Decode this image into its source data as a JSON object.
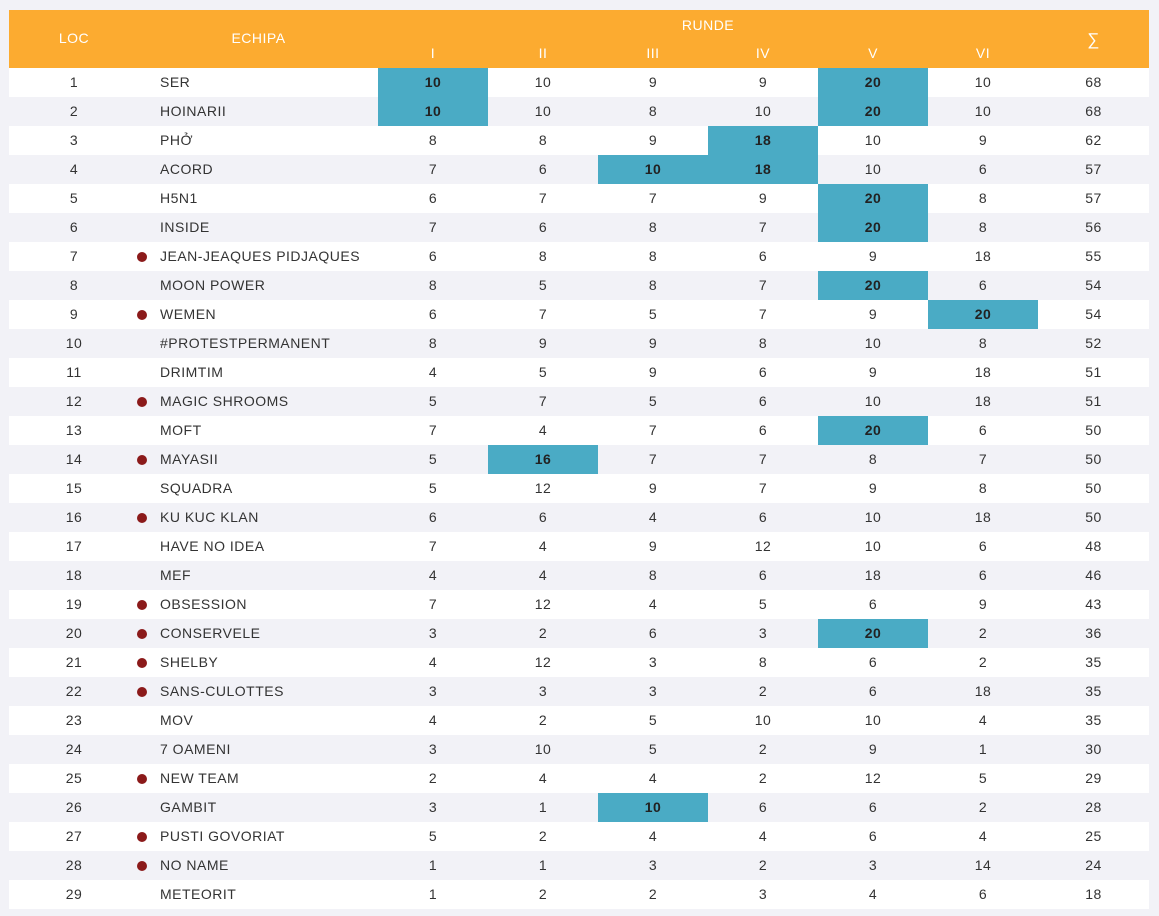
{
  "header": {
    "loc": "LOC",
    "team": "ECHIPA",
    "runde": "RUNDE",
    "rounds": [
      "I",
      "II",
      "III",
      "IV",
      "V",
      "VI"
    ],
    "sum": "∑"
  },
  "colors": {
    "header_bg": "#fcab30",
    "highlight": "#4aabc5",
    "dot": "#8b1a1a"
  },
  "rows": [
    {
      "loc": "1",
      "team": "SER",
      "dot": false,
      "scores": [
        "10",
        "10",
        "9",
        "9",
        "20",
        "10"
      ],
      "hl": [
        0,
        4
      ],
      "total": "68"
    },
    {
      "loc": "2",
      "team": "HOINARII",
      "dot": false,
      "scores": [
        "10",
        "10",
        "8",
        "10",
        "20",
        "10"
      ],
      "hl": [
        0,
        4
      ],
      "total": "68"
    },
    {
      "loc": "3",
      "team": "PHỞ",
      "dot": false,
      "scores": [
        "8",
        "8",
        "9",
        "18",
        "10",
        "9"
      ],
      "hl": [
        3
      ],
      "total": "62"
    },
    {
      "loc": "4",
      "team": "ACORD",
      "dot": false,
      "scores": [
        "7",
        "6",
        "10",
        "18",
        "10",
        "6"
      ],
      "hl": [
        2,
        3
      ],
      "total": "57"
    },
    {
      "loc": "5",
      "team": "H5N1",
      "dot": false,
      "scores": [
        "6",
        "7",
        "7",
        "9",
        "20",
        "8"
      ],
      "hl": [
        4
      ],
      "total": "57"
    },
    {
      "loc": "6",
      "team": "INSIDE",
      "dot": false,
      "scores": [
        "7",
        "6",
        "8",
        "7",
        "20",
        "8"
      ],
      "hl": [
        4
      ],
      "total": "56"
    },
    {
      "loc": "7",
      "team": "JEAN-JEAQUES PIDJAQUES",
      "dot": true,
      "scores": [
        "6",
        "8",
        "8",
        "6",
        "9",
        "18"
      ],
      "hl": [],
      "total": "55"
    },
    {
      "loc": "8",
      "team": "MOON POWER",
      "dot": false,
      "scores": [
        "8",
        "5",
        "8",
        "7",
        "20",
        "6"
      ],
      "hl": [
        4
      ],
      "total": "54"
    },
    {
      "loc": "9",
      "team": "WEMEN",
      "dot": true,
      "scores": [
        "6",
        "7",
        "5",
        "7",
        "9",
        "20"
      ],
      "hl": [
        5
      ],
      "total": "54"
    },
    {
      "loc": "10",
      "team": "#PROTESTPERMANENT",
      "dot": false,
      "scores": [
        "8",
        "9",
        "9",
        "8",
        "10",
        "8"
      ],
      "hl": [],
      "total": "52"
    },
    {
      "loc": "11",
      "team": "DRIMTIM",
      "dot": false,
      "scores": [
        "4",
        "5",
        "9",
        "6",
        "9",
        "18"
      ],
      "hl": [],
      "total": "51"
    },
    {
      "loc": "12",
      "team": "MAGIC SHROOMS",
      "dot": true,
      "scores": [
        "5",
        "7",
        "5",
        "6",
        "10",
        "18"
      ],
      "hl": [],
      "total": "51"
    },
    {
      "loc": "13",
      "team": "MOFT",
      "dot": false,
      "scores": [
        "7",
        "4",
        "7",
        "6",
        "20",
        "6"
      ],
      "hl": [
        4
      ],
      "total": "50"
    },
    {
      "loc": "14",
      "team": "MAYASII",
      "dot": true,
      "scores": [
        "5",
        "16",
        "7",
        "7",
        "8",
        "7"
      ],
      "hl": [
        1
      ],
      "total": "50"
    },
    {
      "loc": "15",
      "team": "SQUADRA",
      "dot": false,
      "scores": [
        "5",
        "12",
        "9",
        "7",
        "9",
        "8"
      ],
      "hl": [],
      "total": "50"
    },
    {
      "loc": "16",
      "team": "KU KUC KLAN",
      "dot": true,
      "scores": [
        "6",
        "6",
        "4",
        "6",
        "10",
        "18"
      ],
      "hl": [],
      "total": "50"
    },
    {
      "loc": "17",
      "team": "HAVE NO IDEA",
      "dot": false,
      "scores": [
        "7",
        "4",
        "9",
        "12",
        "10",
        "6"
      ],
      "hl": [],
      "total": "48"
    },
    {
      "loc": "18",
      "team": "MEF",
      "dot": false,
      "scores": [
        "4",
        "4",
        "8",
        "6",
        "18",
        "6"
      ],
      "hl": [],
      "total": "46"
    },
    {
      "loc": "19",
      "team": "OBSESSION",
      "dot": true,
      "scores": [
        "7",
        "12",
        "4",
        "5",
        "6",
        "9"
      ],
      "hl": [],
      "total": "43"
    },
    {
      "loc": "20",
      "team": "CONSERVELE",
      "dot": true,
      "scores": [
        "3",
        "2",
        "6",
        "3",
        "20",
        "2"
      ],
      "hl": [
        4
      ],
      "total": "36"
    },
    {
      "loc": "21",
      "team": "SHELBY",
      "dot": true,
      "scores": [
        "4",
        "12",
        "3",
        "8",
        "6",
        "2"
      ],
      "hl": [],
      "total": "35"
    },
    {
      "loc": "22",
      "team": "SANS-CULOTTES",
      "dot": true,
      "scores": [
        "3",
        "3",
        "3",
        "2",
        "6",
        "18"
      ],
      "hl": [],
      "total": "35"
    },
    {
      "loc": "23",
      "team": "MOV",
      "dot": false,
      "scores": [
        "4",
        "2",
        "5",
        "10",
        "10",
        "4"
      ],
      "hl": [],
      "total": "35"
    },
    {
      "loc": "24",
      "team": "7 OAMENI",
      "dot": false,
      "scores": [
        "3",
        "10",
        "5",
        "2",
        "9",
        "1"
      ],
      "hl": [],
      "total": "30"
    },
    {
      "loc": "25",
      "team": "NEW TEAM",
      "dot": true,
      "scores": [
        "2",
        "4",
        "4",
        "2",
        "12",
        "5"
      ],
      "hl": [],
      "total": "29"
    },
    {
      "loc": "26",
      "team": "GAMBIT",
      "dot": false,
      "scores": [
        "3",
        "1",
        "10",
        "6",
        "6",
        "2"
      ],
      "hl": [
        2
      ],
      "total": "28"
    },
    {
      "loc": "27",
      "team": "PUSTI GOVORIAT",
      "dot": true,
      "scores": [
        "5",
        "2",
        "4",
        "4",
        "6",
        "4"
      ],
      "hl": [],
      "total": "25"
    },
    {
      "loc": "28",
      "team": "NO NAME",
      "dot": true,
      "scores": [
        "1",
        "1",
        "3",
        "2",
        "3",
        "14"
      ],
      "hl": [],
      "total": "24"
    },
    {
      "loc": "29",
      "team": "METEORIT",
      "dot": false,
      "scores": [
        "1",
        "2",
        "2",
        "3",
        "4",
        "6"
      ],
      "hl": [],
      "total": "18"
    }
  ]
}
